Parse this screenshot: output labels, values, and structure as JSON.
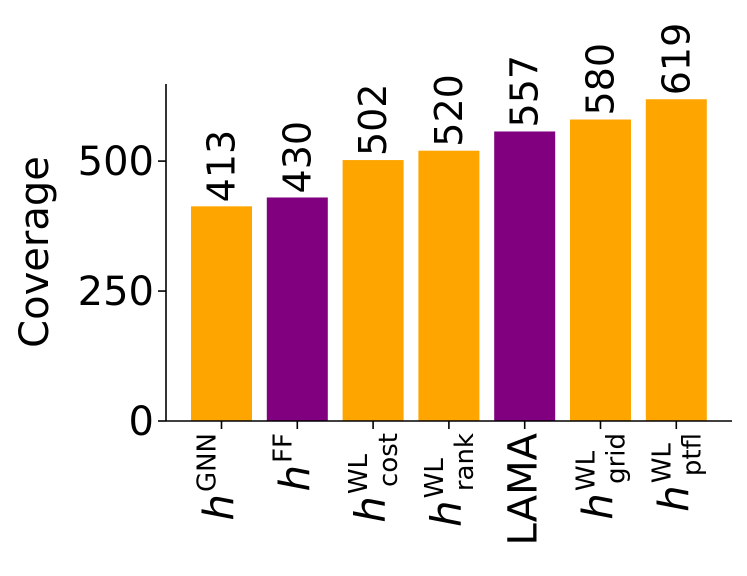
{
  "chart_data": {
    "type": "bar",
    "ylabel": "Coverage",
    "ylim": [
      0,
      650
    ],
    "yticks": [
      0,
      250,
      500
    ],
    "categories": [
      {
        "base": "h",
        "sup": "GNN",
        "sub": ""
      },
      {
        "base": "h",
        "sup": "FF",
        "sub": ""
      },
      {
        "base": "h",
        "sup": "WL",
        "sub": "cost"
      },
      {
        "base": "h",
        "sup": "WL",
        "sub": "rank"
      },
      {
        "base": "LAMA",
        "sup": "",
        "sub": ""
      },
      {
        "base": "h",
        "sup": "WL",
        "sub": "grid"
      },
      {
        "base": "h",
        "sup": "WL",
        "sub": "ptfl"
      }
    ],
    "values": [
      413,
      430,
      502,
      520,
      557,
      580,
      619
    ],
    "colors": [
      "#FFA500",
      "#800080",
      "#FFA500",
      "#FFA500",
      "#800080",
      "#FFA500",
      "#FFA500"
    ],
    "grid": false,
    "legend": "none"
  }
}
